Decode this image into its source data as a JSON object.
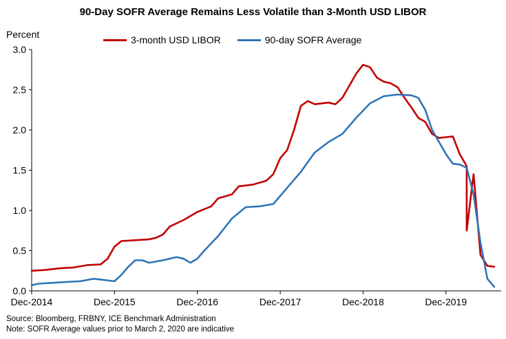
{
  "chart_data": {
    "type": "line",
    "title": "90-Day SOFR Average Remains Less Volatile  than 3-Month  USD LIBOR",
    "ylabel": "Percent",
    "xlabel": "",
    "ylim": [
      0,
      3.0
    ],
    "yticks": [
      "0.0",
      "0.5",
      "1.0",
      "1.5",
      "2.0",
      "2.5",
      "3.0"
    ],
    "xtick_labels": [
      "Dec-2014",
      "Dec-2015",
      "Dec-2016",
      "Dec-2017",
      "Dec-2018",
      "Dec-2019"
    ],
    "grid": false,
    "legend_position": "top",
    "series": [
      {
        "name": "3-month USD LIBOR",
        "color": "#c00000",
        "points": [
          [
            "2014-12",
            0.25
          ],
          [
            "2015-02",
            0.26
          ],
          [
            "2015-04",
            0.28
          ],
          [
            "2015-06",
            0.29
          ],
          [
            "2015-08",
            0.32
          ],
          [
            "2015-10",
            0.33
          ],
          [
            "2015-11",
            0.4
          ],
          [
            "2015-12",
            0.55
          ],
          [
            "2016-01",
            0.62
          ],
          [
            "2016-03",
            0.63
          ],
          [
            "2016-05",
            0.64
          ],
          [
            "2016-06",
            0.66
          ],
          [
            "2016-07",
            0.7
          ],
          [
            "2016-08",
            0.8
          ],
          [
            "2016-10",
            0.88
          ],
          [
            "2016-12",
            0.98
          ],
          [
            "2017-02",
            1.05
          ],
          [
            "2017-03",
            1.15
          ],
          [
            "2017-05",
            1.2
          ],
          [
            "2017-06",
            1.3
          ],
          [
            "2017-08",
            1.32
          ],
          [
            "2017-10",
            1.37
          ],
          [
            "2017-11",
            1.45
          ],
          [
            "2017-12",
            1.65
          ],
          [
            "2018-01",
            1.75
          ],
          [
            "2018-02",
            2.0
          ],
          [
            "2018-03",
            2.3
          ],
          [
            "2018-04",
            2.36
          ],
          [
            "2018-05",
            2.32
          ],
          [
            "2018-07",
            2.34
          ],
          [
            "2018-08",
            2.32
          ],
          [
            "2018-09",
            2.4
          ],
          [
            "2018-10",
            2.55
          ],
          [
            "2018-11",
            2.7
          ],
          [
            "2018-12",
            2.81
          ],
          [
            "2019-01",
            2.78
          ],
          [
            "2019-02",
            2.65
          ],
          [
            "2019-03",
            2.6
          ],
          [
            "2019-04",
            2.58
          ],
          [
            "2019-05",
            2.53
          ],
          [
            "2019-06",
            2.4
          ],
          [
            "2019-07",
            2.28
          ],
          [
            "2019-08",
            2.15
          ],
          [
            "2019-09",
            2.1
          ],
          [
            "2019-10",
            1.95
          ],
          [
            "2019-11",
            1.9
          ],
          [
            "2019-12",
            1.91
          ],
          [
            "2020-01",
            1.92
          ],
          [
            "2020-02",
            1.7
          ],
          [
            "2020-03",
            1.55
          ],
          [
            "2020-03",
            0.75
          ],
          [
            "2020-04",
            1.45
          ],
          [
            "2020-05",
            0.45
          ],
          [
            "2020-06",
            0.31
          ],
          [
            "2020-07",
            0.3
          ]
        ]
      },
      {
        "name": "90-day SOFR Average",
        "color": "#2e75b6",
        "points": [
          [
            "2014-12",
            0.07
          ],
          [
            "2015-01",
            0.09
          ],
          [
            "2015-03",
            0.1
          ],
          [
            "2015-05",
            0.11
          ],
          [
            "2015-07",
            0.12
          ],
          [
            "2015-09",
            0.15
          ],
          [
            "2015-10",
            0.14
          ],
          [
            "2015-12",
            0.12
          ],
          [
            "2016-01",
            0.2
          ],
          [
            "2016-02",
            0.3
          ],
          [
            "2016-03",
            0.38
          ],
          [
            "2016-04",
            0.38
          ],
          [
            "2016-05",
            0.35
          ],
          [
            "2016-07",
            0.38
          ],
          [
            "2016-09",
            0.42
          ],
          [
            "2016-10",
            0.4
          ],
          [
            "2016-11",
            0.35
          ],
          [
            "2016-12",
            0.4
          ],
          [
            "2017-01",
            0.5
          ],
          [
            "2017-03",
            0.68
          ],
          [
            "2017-05",
            0.9
          ],
          [
            "2017-07",
            1.04
          ],
          [
            "2017-09",
            1.05
          ],
          [
            "2017-11",
            1.08
          ],
          [
            "2018-01",
            1.28
          ],
          [
            "2018-03",
            1.48
          ],
          [
            "2018-05",
            1.72
          ],
          [
            "2018-07",
            1.85
          ],
          [
            "2018-09",
            1.95
          ],
          [
            "2018-11",
            2.15
          ],
          [
            "2019-01",
            2.33
          ],
          [
            "2019-03",
            2.42
          ],
          [
            "2019-05",
            2.44
          ],
          [
            "2019-07",
            2.43
          ],
          [
            "2019-08",
            2.4
          ],
          [
            "2019-09",
            2.25
          ],
          [
            "2019-10",
            2.0
          ],
          [
            "2019-12",
            1.7
          ],
          [
            "2020-01",
            1.58
          ],
          [
            "2020-02",
            1.57
          ],
          [
            "2020-03",
            1.53
          ],
          [
            "2020-04",
            1.2
          ],
          [
            "2020-05",
            0.6
          ],
          [
            "2020-06",
            0.15
          ],
          [
            "2020-07",
            0.05
          ]
        ]
      }
    ]
  },
  "footnotes": [
    "Source: Bloomberg,  FRBNY,  ICE Benchmark Administration",
    "Note: SOFR Average values  prior to March 2, 2020 are indicative"
  ]
}
